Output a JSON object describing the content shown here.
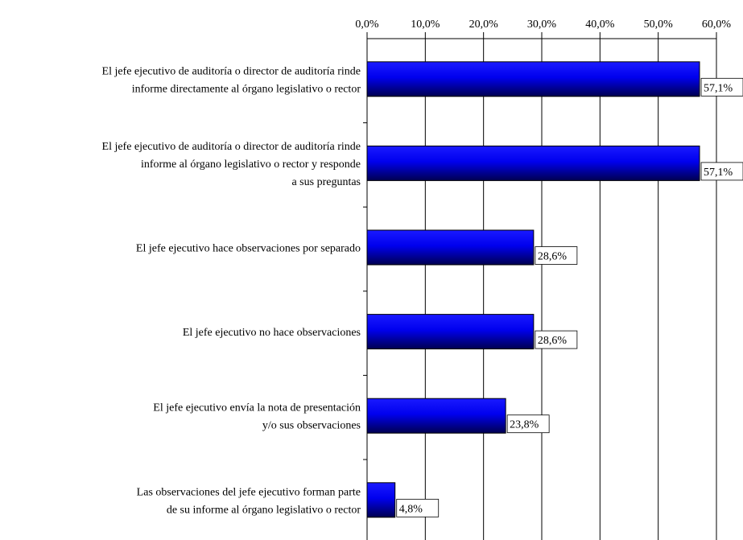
{
  "chart_data": {
    "type": "bar",
    "orientation": "horizontal",
    "categories": [
      [
        "El jefe ejecutivo de auditoría o director de auditoría rinde",
        "informe directamente al órgano legislativo o rector"
      ],
      [
        "El jefe ejecutivo de auditoría o director de auditoría rinde",
        "informe al órgano legislativo o rector y responde",
        "a sus preguntas"
      ],
      [
        "El jefe ejecutivo hace observaciones por separado"
      ],
      [
        "El jefe ejecutivo no hace observaciones"
      ],
      [
        "El jefe ejecutivo envía la nota de presentación",
        "y/o sus observaciones"
      ],
      [
        "Las observaciones del jefe ejecutivo forman parte",
        "de su informe al órgano legislativo o rector"
      ]
    ],
    "values": [
      57.1,
      57.1,
      28.6,
      28.6,
      23.8,
      4.8
    ],
    "value_labels": [
      "57,1%",
      "57,1%",
      "28,6%",
      "28,6%",
      "23,8%",
      "4,8%"
    ],
    "color": "#0000ff",
    "xlim": [
      0,
      60
    ],
    "xticks": [
      {
        "value": 0,
        "label": "0,0%"
      },
      {
        "value": 10,
        "label": "10,0%"
      },
      {
        "value": 20,
        "label": "20,0%"
      },
      {
        "value": 30,
        "label": "30,0%"
      },
      {
        "value": 40,
        "label": "40,0%"
      },
      {
        "value": 50,
        "label": "50,0%"
      },
      {
        "value": 60,
        "label": "60,0%"
      }
    ],
    "grid": true
  }
}
